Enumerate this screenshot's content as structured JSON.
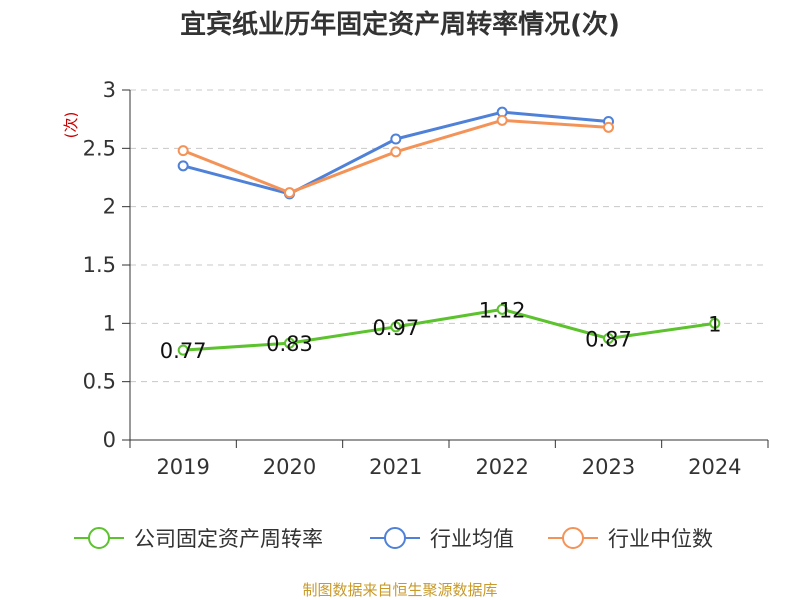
{
  "chart_data": {
    "type": "line",
    "title": "宜宾纸业历年固定资产周转率情况(次)",
    "ylabel": "(次)",
    "xlabel": "",
    "categories": [
      "2019",
      "2020",
      "2021",
      "2022",
      "2023",
      "2024"
    ],
    "ylim": [
      0,
      3
    ],
    "yticks": [
      0,
      0.5,
      1,
      1.5,
      2,
      2.5,
      3
    ],
    "ytick_labels": [
      "0",
      "0.5",
      "1",
      "1.5",
      "2",
      "2.5",
      "3"
    ],
    "grid": true,
    "legend_position": "bottom",
    "series": [
      {
        "name": "公司固定资产周转率",
        "color": "#5cc22e",
        "values": [
          0.77,
          0.83,
          0.97,
          1.12,
          0.87,
          1.0
        ],
        "labels": [
          "0.77",
          "0.83",
          "0.97",
          "1.12",
          "0.87",
          "1"
        ]
      },
      {
        "name": "行业均值",
        "color": "#4f81d8",
        "values": [
          2.35,
          2.11,
          2.58,
          2.81,
          2.73,
          null
        ]
      },
      {
        "name": "行业中位数",
        "color": "#f49358",
        "values": [
          2.48,
          2.12,
          2.47,
          2.74,
          2.68,
          null
        ]
      }
    ],
    "source": "制图数据来自恒生聚源数据库"
  }
}
